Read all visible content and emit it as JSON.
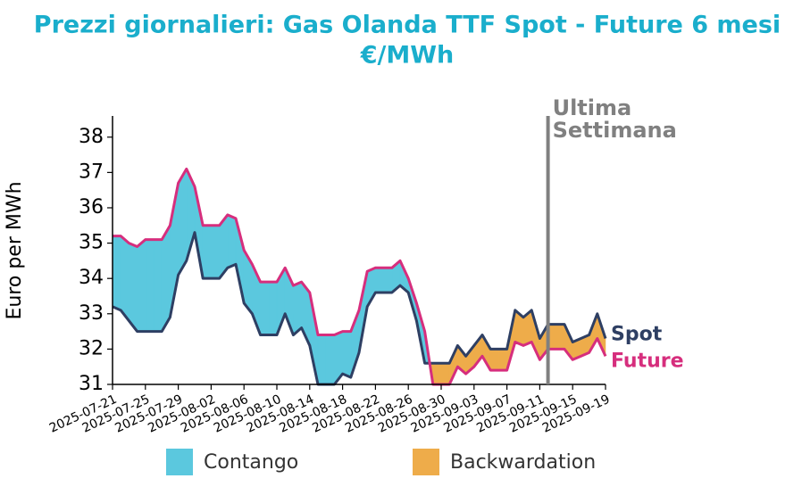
{
  "chart_data": {
    "type": "line",
    "title": "Prezzi giornalieri: Gas Olanda TTF Spot - Future 6 mesi",
    "subtitle": "€/MWh",
    "y_label": "Euro per MWh",
    "x": [
      "2025-07-21",
      "2025-07-22",
      "2025-07-23",
      "2025-07-24",
      "2025-07-25",
      "2025-07-26",
      "2025-07-27",
      "2025-07-28",
      "2025-07-29",
      "2025-07-30",
      "2025-07-31",
      "2025-08-01",
      "2025-08-02",
      "2025-08-03",
      "2025-08-04",
      "2025-08-05",
      "2025-08-06",
      "2025-08-07",
      "2025-08-08",
      "2025-08-09",
      "2025-08-10",
      "2025-08-11",
      "2025-08-12",
      "2025-08-13",
      "2025-08-14",
      "2025-08-15",
      "2025-08-16",
      "2025-08-17",
      "2025-08-18",
      "2025-08-19",
      "2025-08-20",
      "2025-08-21",
      "2025-08-22",
      "2025-08-23",
      "2025-08-24",
      "2025-08-25",
      "2025-08-26",
      "2025-08-27",
      "2025-08-28",
      "2025-08-29",
      "2025-08-30",
      "2025-08-31",
      "2025-09-01",
      "2025-09-02",
      "2025-09-03",
      "2025-09-04",
      "2025-09-05",
      "2025-09-06",
      "2025-09-07",
      "2025-09-08",
      "2025-09-09",
      "2025-09-10",
      "2025-09-11",
      "2025-09-12",
      "2025-09-13",
      "2025-09-14",
      "2025-09-15",
      "2025-09-16",
      "2025-09-17",
      "2025-09-18",
      "2025-09-19"
    ],
    "series": [
      {
        "name": "Spot",
        "color": "#2e3f63",
        "values": [
          33.2,
          33.1,
          32.8,
          32.5,
          32.5,
          32.5,
          32.5,
          32.9,
          34.1,
          34.5,
          35.3,
          34.0,
          34.0,
          34.0,
          34.3,
          34.4,
          33.3,
          33.0,
          32.4,
          32.4,
          32.4,
          33.0,
          32.4,
          32.6,
          32.1,
          31.0,
          31.0,
          31.0,
          31.3,
          31.2,
          31.9,
          33.2,
          33.6,
          33.6,
          33.6,
          33.8,
          33.6,
          32.8,
          31.6,
          31.6,
          31.6,
          31.6,
          32.1,
          31.8,
          32.1,
          32.4,
          32.0,
          32.0,
          32.0,
          33.1,
          32.9,
          33.1,
          32.3,
          32.7,
          32.7,
          32.7,
          32.2,
          32.3,
          32.4,
          33.0,
          32.3
        ]
      },
      {
        "name": "Future",
        "color": "#d62e7d",
        "values": [
          35.2,
          35.2,
          35.0,
          34.9,
          35.1,
          35.1,
          35.1,
          35.5,
          36.7,
          37.1,
          36.6,
          35.5,
          35.5,
          35.5,
          35.8,
          35.7,
          34.8,
          34.4,
          33.9,
          33.9,
          33.9,
          34.3,
          33.8,
          33.9,
          33.6,
          32.4,
          32.4,
          32.4,
          32.5,
          32.5,
          33.1,
          34.2,
          34.3,
          34.3,
          34.3,
          34.5,
          34.0,
          33.3,
          32.5,
          31.0,
          31.0,
          31.0,
          31.5,
          31.3,
          31.5,
          31.8,
          31.4,
          31.4,
          31.4,
          32.2,
          32.1,
          32.2,
          31.7,
          32.0,
          32.0,
          32.0,
          31.7,
          31.8,
          31.9,
          32.3,
          31.8
        ]
      }
    ],
    "fills": [
      {
        "name": "Contango",
        "color": "#5bc8de"
      },
      {
        "name": "Backwardation",
        "color": "#eeac4a"
      }
    ],
    "xticks": [
      "2025-07-21",
      "2025-07-25",
      "2025-07-29",
      "2025-08-02",
      "2025-08-06",
      "2025-08-10",
      "2025-08-14",
      "2025-08-18",
      "2025-08-22",
      "2025-08-26",
      "2025-08-30",
      "2025-09-03",
      "2025-09-07",
      "2025-09-11",
      "2025-09-15",
      "2025-09-19"
    ],
    "ylim": [
      31,
      38.6
    ],
    "yticks": [
      31,
      32,
      33,
      34,
      35,
      36,
      37,
      38
    ],
    "annotation": {
      "x": "2025-09-12",
      "text": [
        "Ultima",
        "Settimana"
      ],
      "color": "#808080"
    },
    "title_color": "#1aaecc"
  }
}
